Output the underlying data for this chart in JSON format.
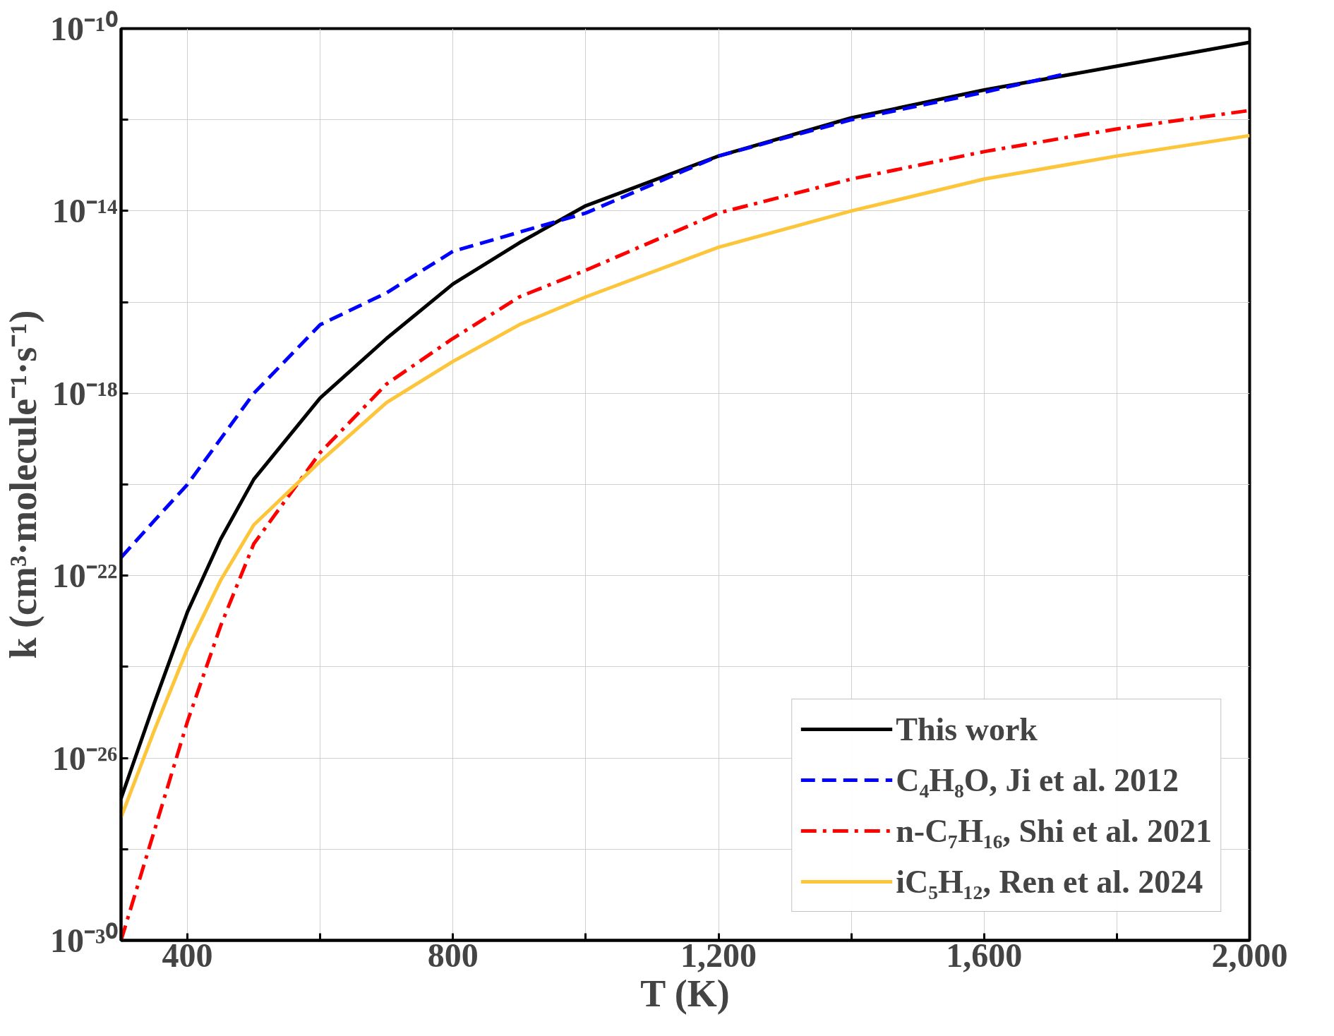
{
  "chart_data": {
    "type": "line",
    "xlabel": "T (K)",
    "ylabel": "k (cm³·molecule⁻¹·s⁻¹)",
    "log": "y",
    "xlim": [
      300,
      2000
    ],
    "ylim": [
      1e-30,
      1e-10
    ],
    "xticks": [
      {
        "value": 400,
        "label": "400"
      },
      {
        "value": 600,
        "label": null
      },
      {
        "value": 800,
        "label": "800"
      },
      {
        "value": 1000,
        "label": null
      },
      {
        "value": 1200,
        "label": "1,200"
      },
      {
        "value": 1400,
        "label": null
      },
      {
        "value": 1600,
        "label": "1,600"
      },
      {
        "value": 1800,
        "label": null
      },
      {
        "value": 2000,
        "label": "2,000"
      }
    ],
    "yticks": [
      {
        "value": 1e-30,
        "label": "10⁻³⁰"
      },
      {
        "value": 1e-28,
        "label": null
      },
      {
        "value": 1e-26,
        "label": "10⁻²⁶"
      },
      {
        "value": 1e-24,
        "label": null
      },
      {
        "value": 1e-22,
        "label": "10⁻²²"
      },
      {
        "value": 1e-20,
        "label": null
      },
      {
        "value": 1e-18,
        "label": "10⁻¹⁸"
      },
      {
        "value": 1e-16,
        "label": null
      },
      {
        "value": 1e-14,
        "label": "10⁻¹⁴"
      },
      {
        "value": 1e-12,
        "label": null
      },
      {
        "value": 1e-10,
        "label": "10⁻¹⁰"
      }
    ],
    "grid": true,
    "legend": "bottom right",
    "x": [
      300,
      350,
      400,
      450,
      500,
      600,
      700,
      800,
      900,
      1000,
      1200,
      1400,
      1600,
      1800,
      2000
    ],
    "series": [
      {
        "name": "This work",
        "color": "#000000",
        "line_style": "solid",
        "values": [
          1.3e-27,
          1.6e-25,
          1.6e-23,
          6.3e-22,
          1.3e-20,
          7.9e-19,
          1.6e-17,
          2.5e-16,
          2e-15,
          1.3e-14,
          1.6e-13,
          1.1e-12,
          4.5e-12,
          1.5e-11,
          5e-11
        ]
      },
      {
        "name": "C₄H₈O, Ji et al. 2012",
        "color": "#0000ff",
        "line_style": "dashed",
        "x": [
          300,
          350,
          400,
          450,
          500,
          600,
          700,
          800,
          1000,
          1200,
          1400,
          1600,
          1720
        ],
        "values": [
          2.5e-22,
          1.6e-21,
          1e-20,
          1e-19,
          1e-18,
          3.2e-17,
          1.6e-16,
          1.3e-15,
          9e-15,
          1.6e-13,
          1e-12,
          4e-12,
          1e-11
        ]
      },
      {
        "name": "n-C₇H₁₆, Shi et al. 2021",
        "color": "#ff0000",
        "line_style": "dashdot",
        "values": [
          1e-30,
          2.5e-28,
          6.3e-26,
          7.9e-24,
          5e-22,
          5e-20,
          1.6e-18,
          1.6e-17,
          1.3e-16,
          5e-16,
          9e-15,
          5e-14,
          2e-13,
          6.3e-13,
          1.6e-12
        ]
      },
      {
        "name": "iC₅H₁₂, Ren et al. 2024",
        "color": "#fcc53a",
        "line_style": "solid",
        "values": [
          5e-28,
          4e-26,
          2.5e-24,
          7.9e-23,
          1.3e-21,
          3.2e-20,
          6.3e-19,
          5e-18,
          3.2e-17,
          1.3e-16,
          1.6e-15,
          1e-14,
          5e-14,
          1.6e-13,
          4.5e-13
        ]
      }
    ]
  }
}
